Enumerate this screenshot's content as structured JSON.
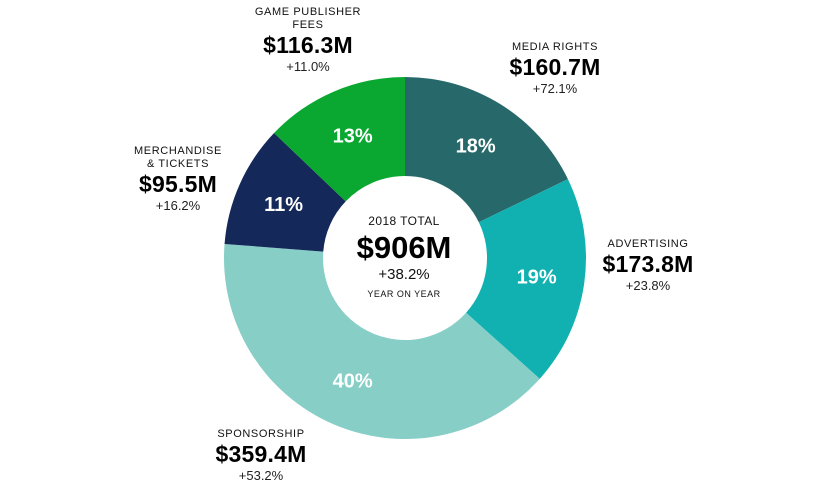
{
  "chart_data": {
    "type": "pie",
    "variant": "donut",
    "center": {
      "label": "2018 TOTAL",
      "value": "$906M",
      "change": "+38.2%",
      "note": "YEAR ON YEAR"
    },
    "slices": [
      {
        "name_lines": [
          "MEDIA RIGHTS"
        ],
        "value_label": "$160.7M",
        "change": "+72.1%",
        "percent": 18,
        "percent_label": "18%",
        "color": "#27696a"
      },
      {
        "name_lines": [
          "ADVERTISING"
        ],
        "value_label": "$173.8M",
        "change": "+23.8%",
        "percent": 19,
        "percent_label": "19%",
        "color": "#12b1b1"
      },
      {
        "name_lines": [
          "SPONSORSHIP"
        ],
        "value_label": "$359.4M",
        "change": "+53.2%",
        "percent": 40,
        "percent_label": "40%",
        "color": "#87cec6"
      },
      {
        "name_lines": [
          "MERCHANDISE",
          "& TICKETS"
        ],
        "value_label": "$95.5M",
        "change": "+16.2%",
        "percent": 11,
        "percent_label": "11%",
        "color": "#14285a"
      },
      {
        "name_lines": [
          "GAME PUBLISHER",
          "FEES"
        ],
        "value_label": "$116.3M",
        "change": "+11.0%",
        "percent": 13,
        "percent_label": "13%",
        "color": "#0aa830"
      }
    ],
    "slice_text_color": "#ffffff"
  }
}
